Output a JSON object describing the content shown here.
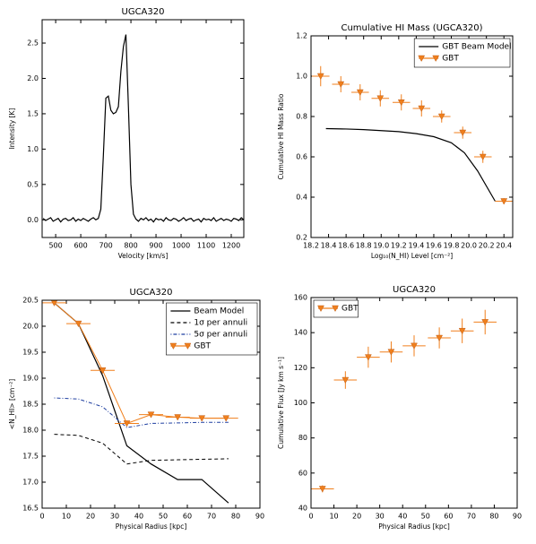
{
  "chart_data": [
    {
      "type": "line",
      "title": "UGCA320",
      "xlabel": "Velocity [km/s]",
      "ylabel": "Intensity [K]",
      "xlim": [
        446,
        1250
      ],
      "ylim": [
        -0.25,
        2.83
      ],
      "xticks": [
        500,
        600,
        700,
        800,
        900,
        1000,
        1100,
        1200
      ],
      "yticks": [
        {
          "value": 0,
          "label": "0.0"
        },
        0.5,
        {
          "value": 1,
          "label": "1.0"
        },
        1.5,
        {
          "value": 2,
          "label": "2.0"
        },
        2.5
      ],
      "series": [
        {
          "color": "#000000",
          "linestyle": "solid",
          "marker": "none",
          "x": [
            450,
            460,
            470,
            480,
            490,
            500,
            510,
            520,
            530,
            540,
            550,
            560,
            570,
            580,
            590,
            600,
            610,
            620,
            630,
            640,
            650,
            660,
            670,
            680,
            690,
            700,
            710,
            720,
            730,
            740,
            750,
            760,
            770,
            780,
            790,
            800,
            810,
            820,
            830,
            840,
            850,
            860,
            870,
            880,
            890,
            900,
            910,
            920,
            930,
            940,
            950,
            960,
            970,
            980,
            990,
            1000,
            1010,
            1020,
            1030,
            1040,
            1050,
            1060,
            1070,
            1080,
            1090,
            1100,
            1110,
            1120,
            1130,
            1140,
            1150,
            1160,
            1170,
            1180,
            1190,
            1200,
            1210,
            1220,
            1230,
            1240,
            1250
          ],
          "values": [
            0.02,
            -0.01,
            0.01,
            0.03,
            -0.02,
            0.0,
            0.02,
            -0.03,
            0.01,
            0.02,
            -0.01,
            0.0,
            0.03,
            -0.02,
            0.01,
            -0.01,
            0.02,
            0.0,
            -0.02,
            0.01,
            0.03,
            0.0,
            0.02,
            0.15,
            0.9,
            1.72,
            1.75,
            1.55,
            1.5,
            1.52,
            1.6,
            2.1,
            2.45,
            2.62,
            1.6,
            0.5,
            0.08,
            0.01,
            -0.02,
            0.02,
            0.0,
            0.03,
            -0.01,
            0.01,
            -0.03,
            0.02,
            0.0,
            0.01,
            -0.02,
            0.03,
            0.0,
            -0.01,
            0.02,
            0.01,
            -0.02,
            0.0,
            0.03,
            -0.01,
            0.01,
            0.02,
            -0.02,
            0.0,
            0.01,
            -0.03,
            0.02,
            0.0,
            0.01,
            -0.01,
            0.03,
            -0.02,
            0.0,
            0.02,
            -0.01,
            0.01,
            0.0,
            -0.02,
            0.02,
            0.01,
            -0.01,
            0.03,
            0.0
          ]
        }
      ]
    },
    {
      "type": "line",
      "title": "Cumulative HI Mass (UGCA320)",
      "xlabel": "Log₁₀(N_HI) Level [cm⁻²]",
      "ylabel": "Cumulative HI Mass Ratio",
      "xlim": [
        18.2,
        20.5
      ],
      "ylim": [
        0.2,
        1.2
      ],
      "xticks": [
        18.2,
        18.4,
        18.6,
        18.8,
        {
          "value": 19,
          "label": "19.0"
        },
        19.2,
        19.4,
        19.6,
        19.8,
        {
          "value": 20,
          "label": "20.0"
        },
        20.2,
        20.4
      ],
      "yticks": [
        0.2,
        0.4,
        0.6,
        0.8,
        {
          "value": 1,
          "label": "1.0"
        },
        1.2
      ],
      "legend": "upper right",
      "series": [
        {
          "name": "GBT Beam Model",
          "color": "#000000",
          "linestyle": "solid",
          "marker": "none",
          "x": [
            18.37,
            18.6,
            18.8,
            19.0,
            19.2,
            19.4,
            19.6,
            19.8,
            19.95,
            20.1,
            20.3
          ],
          "values": [
            0.74,
            0.738,
            0.735,
            0.73,
            0.725,
            0.715,
            0.7,
            0.67,
            0.62,
            0.53,
            0.38
          ]
        },
        {
          "name": "GBT",
          "color": "#f07f1c",
          "linestyle": "none",
          "marker": "triangle-down",
          "x": [
            18.31,
            18.54,
            18.76,
            18.99,
            19.23,
            19.46,
            19.69,
            19.93,
            20.16,
            20.4
          ],
          "values": [
            1.0,
            0.96,
            0.92,
            0.89,
            0.87,
            0.84,
            0.8,
            0.72,
            0.6,
            0.38
          ],
          "xerr": [
            0.1,
            0.1,
            0.1,
            0.1,
            0.1,
            0.1,
            0.1,
            0.1,
            0.1,
            0.1
          ],
          "yerr": [
            0.05,
            0.04,
            0.04,
            0.04,
            0.04,
            0.04,
            0.03,
            0.03,
            0.03,
            0.015
          ]
        }
      ]
    },
    {
      "type": "line",
      "title": "UGCA320",
      "xlabel": "Physical Radius [kpc]",
      "ylabel": "<N_HI> [cm⁻²]",
      "xlim": [
        0,
        90
      ],
      "ylim": [
        16.5,
        20.5
      ],
      "xticks": [
        0,
        10,
        20,
        30,
        40,
        50,
        60,
        70,
        80,
        90
      ],
      "yticks": [
        16.5,
        {
          "value": 17,
          "label": "17.0"
        },
        17.5,
        {
          "value": 18,
          "label": "18.0"
        },
        18.5,
        {
          "value": 19,
          "label": "19.0"
        },
        19.5,
        {
          "value": 20,
          "label": "20.0"
        },
        20.5
      ],
      "legend": "upper right",
      "series": [
        {
          "name": "Beam Model",
          "color": "#000000",
          "linestyle": "solid",
          "marker": "none",
          "x": [
            5,
            15,
            25,
            35,
            45,
            56,
            66,
            77
          ],
          "values": [
            20.45,
            20.05,
            19.05,
            17.7,
            17.35,
            17.05,
            17.05,
            16.6
          ]
        },
        {
          "name": "1σ per annuli",
          "color": "#000000",
          "linestyle": "dashed",
          "marker": "none",
          "x": [
            5,
            15,
            25,
            35,
            45,
            56,
            66,
            77
          ],
          "values": [
            17.92,
            17.9,
            17.75,
            17.35,
            17.42,
            17.43,
            17.44,
            17.45
          ]
        },
        {
          "name": "5σ per annuli",
          "color": "#1f3fa0",
          "linestyle": "dashdot",
          "marker": "none",
          "x": [
            5,
            15,
            25,
            35,
            45,
            56,
            66,
            77
          ],
          "values": [
            18.62,
            18.6,
            18.45,
            18.05,
            18.13,
            18.14,
            18.15,
            18.15
          ]
        },
        {
          "name": "GBT",
          "color": "#f07f1c",
          "linestyle": "solid",
          "marker": "triangle-down",
          "x": [
            5,
            15,
            25,
            35,
            45,
            56,
            66,
            76
          ],
          "values": [
            20.45,
            20.05,
            19.15,
            18.13,
            18.3,
            18.25,
            18.23,
            18.23
          ],
          "xerr": [
            5,
            5,
            5,
            5,
            5,
            5,
            5,
            5
          ],
          "yerr": [
            0.03,
            0.03,
            0.03,
            0.03,
            0.03,
            0.03,
            0.03,
            0.03
          ]
        }
      ]
    },
    {
      "type": "line",
      "title": "UGCA320",
      "xlabel": "Physical Radius [kpc]",
      "ylabel": "Cumulative Flux [Jy km s⁻¹]",
      "xlim": [
        0,
        90
      ],
      "ylim": [
        40,
        160
      ],
      "xticks": [
        0,
        10,
        20,
        30,
        40,
        50,
        60,
        70,
        80,
        90
      ],
      "yticks": [
        40,
        60,
        80,
        100,
        120,
        140,
        160
      ],
      "legend": "upper left",
      "series": [
        {
          "name": "GBT",
          "color": "#f07f1c",
          "linestyle": "none",
          "marker": "triangle-down",
          "x": [
            5,
            15,
            25,
            35,
            45,
            56,
            66,
            76
          ],
          "values": [
            51,
            113,
            126,
            129,
            132.5,
            137,
            141,
            146
          ],
          "xerr": [
            5,
            5,
            5,
            5,
            5,
            5,
            5,
            5
          ],
          "yerr": [
            2,
            5,
            6,
            6,
            6,
            6,
            7,
            7
          ]
        }
      ]
    }
  ]
}
